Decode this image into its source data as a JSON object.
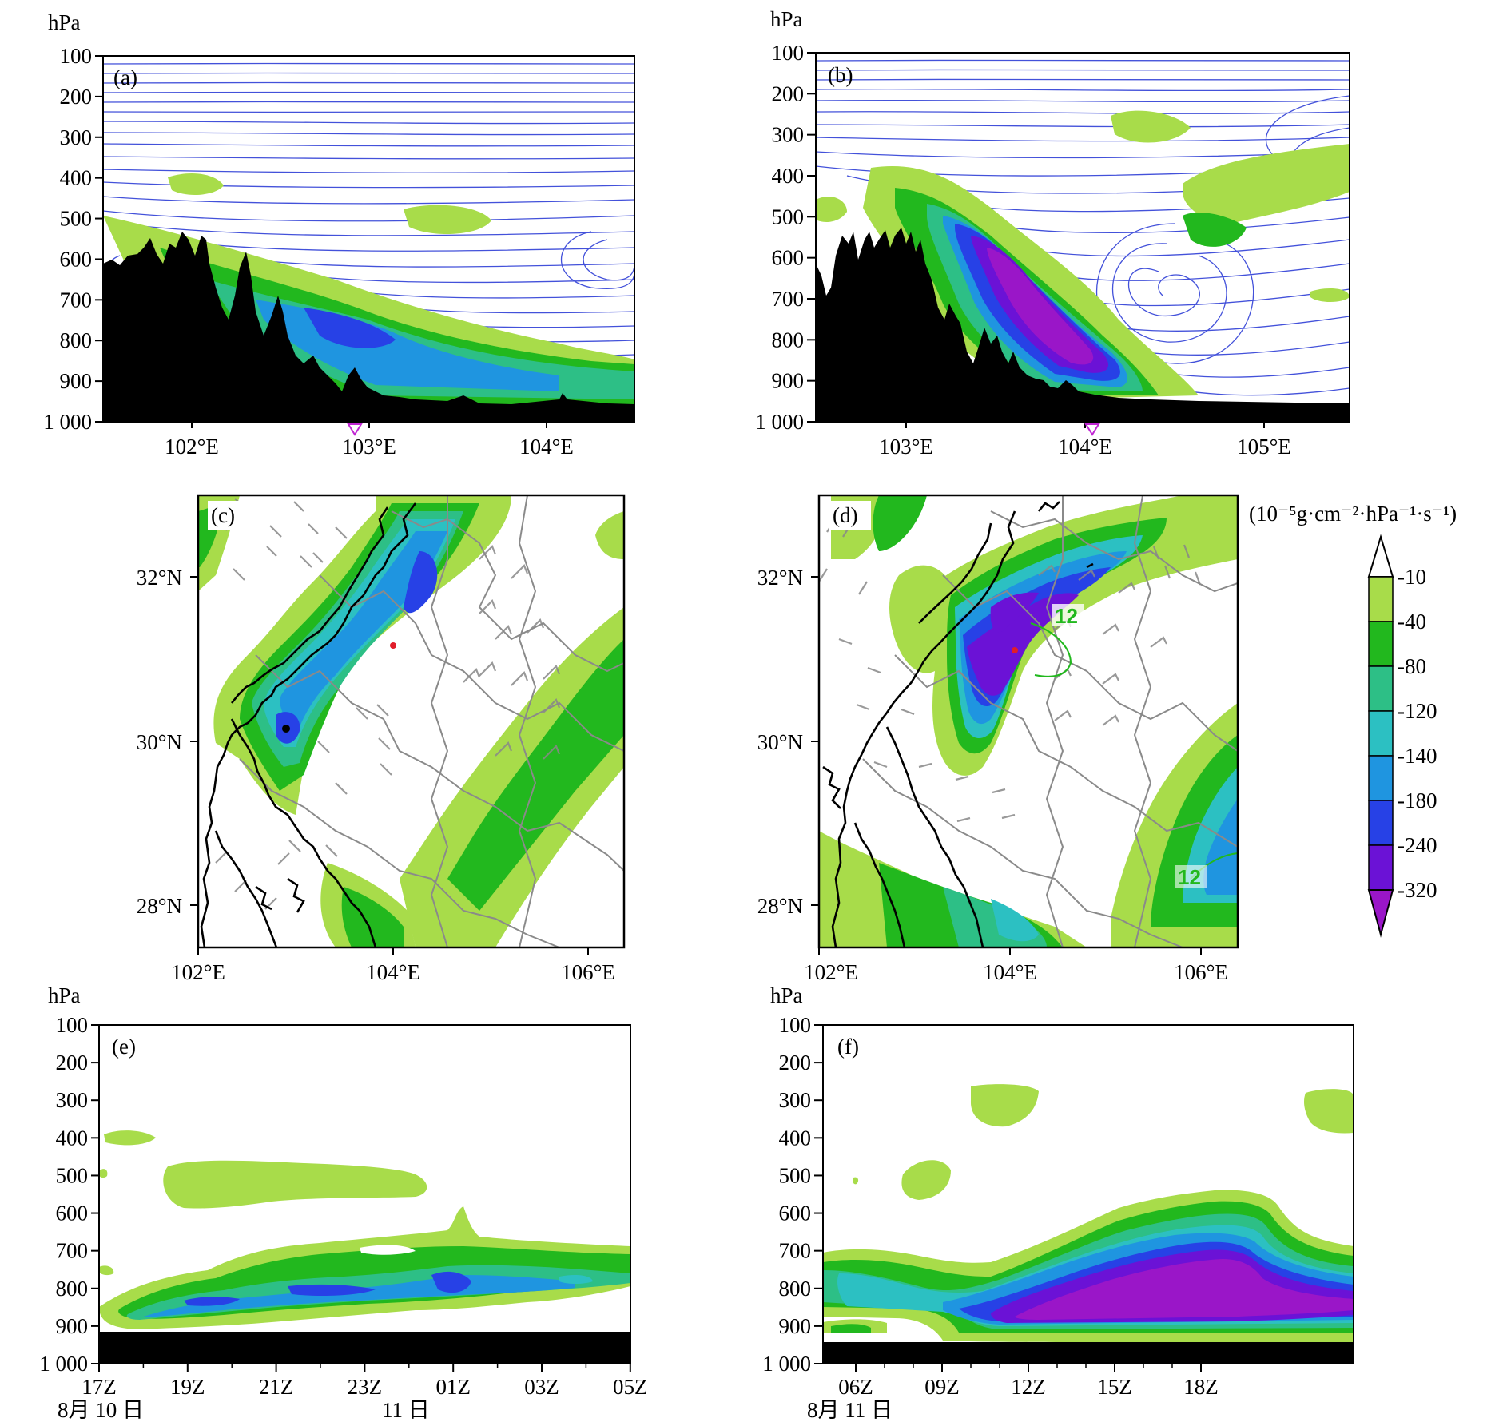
{
  "figure": {
    "pressure_unit": "hPa",
    "pressure_levels": [
      "100",
      "200",
      "300",
      "400",
      "500",
      "600",
      "700",
      "800",
      "900",
      "1 000"
    ],
    "colorbar": {
      "unit": "(10⁻⁵g·cm⁻²·hPa⁻¹·s⁻¹)",
      "ticks": [
        "-10",
        "-40",
        "-80",
        "-120",
        "-140",
        "-180",
        "-240",
        "-320"
      ],
      "colors": [
        "#a8dc4a",
        "#22b81e",
        "#2dbf86",
        "#2cc0c2",
        "#1f95e0",
        "#2741e6",
        "#6b12d6",
        "#9a16c8"
      ]
    },
    "panels": {
      "a": {
        "label": "(a)",
        "x_ticks": [
          "102°E",
          "103°E",
          "104°E"
        ]
      },
      "b": {
        "label": "(b)",
        "x_ticks": [
          "103°E",
          "104°E",
          "105°E"
        ]
      },
      "c": {
        "label": "(c)",
        "x_ticks": [
          "102°E",
          "104°E",
          "106°E"
        ],
        "y_ticks": [
          "32°N",
          "30°N",
          "28°N"
        ]
      },
      "d": {
        "label": "(d)",
        "x_ticks": [
          "102°E",
          "104°E",
          "106°E"
        ],
        "y_ticks": [
          "32°N",
          "30°N",
          "28°N"
        ],
        "contour_labels": [
          "12",
          "12"
        ]
      },
      "e": {
        "label": "(e)",
        "x_ticks": [
          "17Z",
          "19Z",
          "21Z",
          "23Z",
          "01Z",
          "03Z",
          "05Z"
        ],
        "date_labels": [
          "8月 10 日",
          "11 日"
        ]
      },
      "f": {
        "label": "(f)",
        "x_ticks": [
          "06Z",
          "09Z",
          "12Z",
          "15Z",
          "18Z"
        ],
        "date_labels": [
          "8月 11 日"
        ]
      }
    }
  }
}
